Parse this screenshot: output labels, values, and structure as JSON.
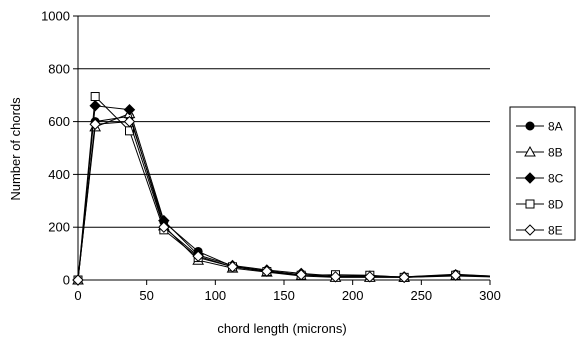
{
  "chart_data": {
    "type": "line",
    "title": "",
    "xlabel": "chord length (microns)",
    "ylabel": "Number of chords",
    "xlim": [
      0,
      300
    ],
    "ylim": [
      0,
      1000
    ],
    "xticks": [
      0,
      50,
      100,
      150,
      200,
      250,
      300
    ],
    "yticks": [
      0,
      200,
      400,
      600,
      800,
      1000
    ],
    "grid": "horizontal",
    "legend_position": "right",
    "x": [
      0,
      12.5,
      37.5,
      62.5,
      87.5,
      112.5,
      137.5,
      162.5,
      187.5,
      212.5,
      237.5,
      275,
      300
    ],
    "series": [
      {
        "name": "8A",
        "marker": "circle-filled",
        "values": [
          0,
          600,
          620,
          220,
          108,
          52,
          35,
          20,
          12,
          12,
          12,
          22,
          15
        ]
      },
      {
        "name": "8B",
        "marker": "triangle-open",
        "values": [
          0,
          580,
          630,
          205,
          75,
          45,
          30,
          15,
          10,
          10,
          10,
          15,
          12
        ]
      },
      {
        "name": "8C",
        "marker": "diamond-filled",
        "values": [
          0,
          660,
          645,
          225,
          95,
          55,
          38,
          25,
          15,
          15,
          12,
          20,
          15
        ]
      },
      {
        "name": "8D",
        "marker": "square-open",
        "values": [
          0,
          695,
          565,
          190,
          85,
          50,
          32,
          18,
          20,
          18,
          10,
          18,
          14
        ]
      },
      {
        "name": "8E",
        "marker": "diamond-open",
        "values": [
          0,
          590,
          600,
          200,
          90,
          50,
          33,
          20,
          12,
          12,
          10,
          18,
          13
        ]
      }
    ]
  }
}
